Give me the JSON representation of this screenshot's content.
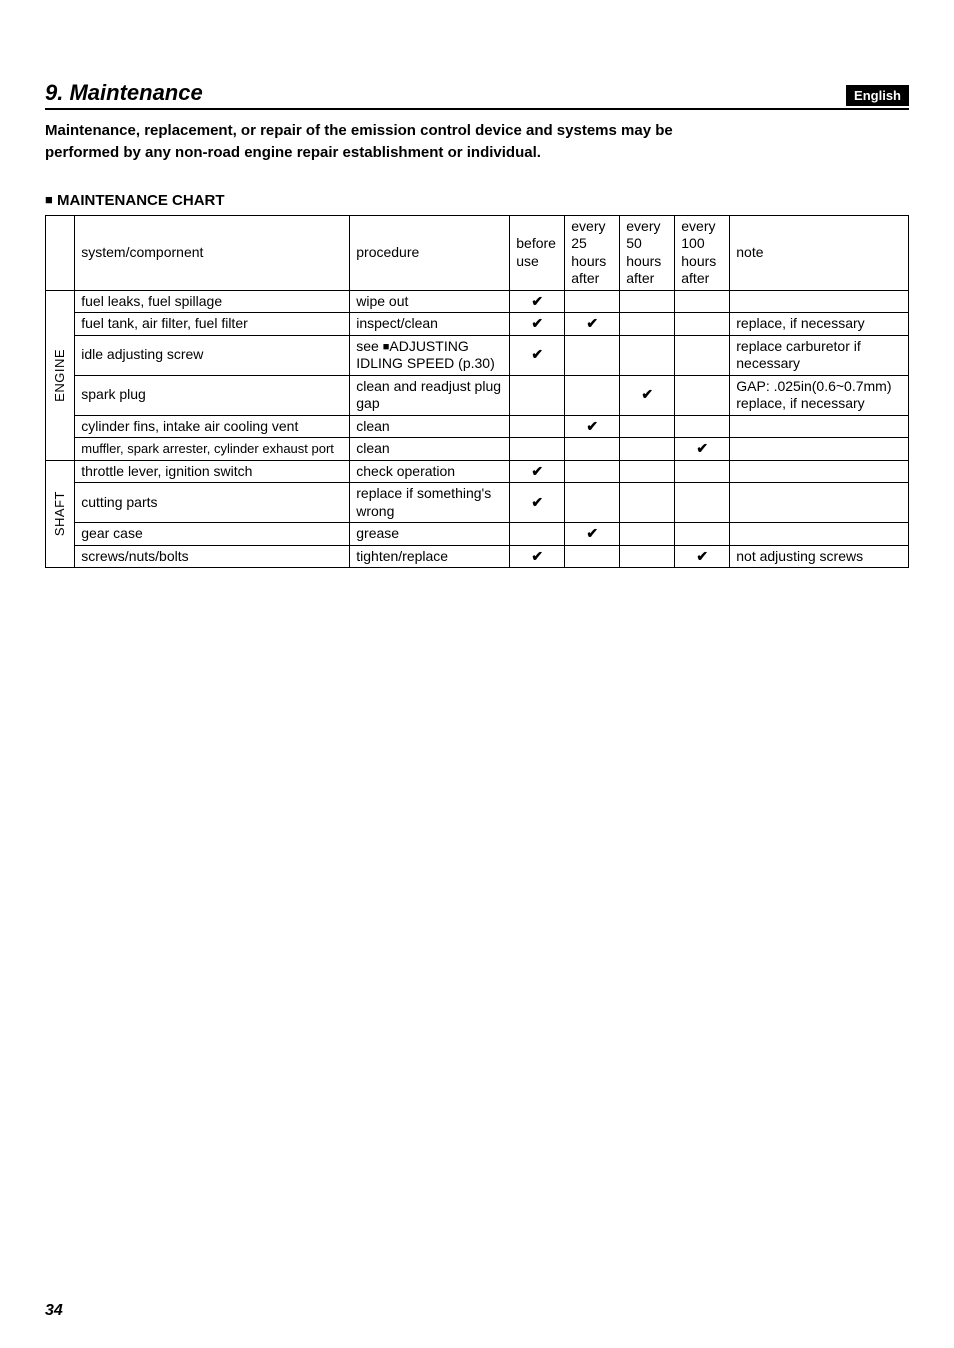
{
  "header": {
    "section_title": "9. Maintenance",
    "language": "English"
  },
  "intro_text": "Maintenance, replacement, or repair of the emission control device and systems may be performed by any non-road engine repair establishment or individual.",
  "chart_heading": "MAINTENANCE CHART",
  "columns": {
    "system": "system/compornent",
    "procedure": "procedure",
    "before": "before use",
    "h25": "every 25 hours after",
    "h50": "every 50 hours after",
    "h100": "every 100 hours after",
    "note": "note"
  },
  "groups": {
    "engine": "ENGINE",
    "shaft": "SHAFT"
  },
  "rows": {
    "r1": {
      "sys": "fuel leaks, fuel spillage",
      "proc": "wipe out",
      "before": "✔",
      "h25": "",
      "h50": "",
      "h100": "",
      "note": ""
    },
    "r2": {
      "sys": "fuel tank, air filter, fuel filter",
      "proc": "inspect/clean",
      "before": "✔",
      "h25": "✔",
      "h50": "",
      "h100": "",
      "note": "replace, if necessary"
    },
    "r3": {
      "sys": "idle adjusting screw",
      "proc_pre": "see ",
      "proc_post": "ADJUSTING IDLING SPEED (p.30)",
      "before": "✔",
      "h25": "",
      "h50": "",
      "h100": "",
      "note": "replace carburetor if necessary"
    },
    "r4": {
      "sys": "spark plug",
      "proc": "clean and readjust plug gap",
      "before": "",
      "h25": "",
      "h50": "✔",
      "h100": "",
      "note": "GAP: .025in(0.6~0.7mm) replace, if necessary"
    },
    "r5": {
      "sys": "cylinder fins, intake air cooling vent",
      "proc": "clean",
      "before": "",
      "h25": "✔",
      "h50": "",
      "h100": "",
      "note": ""
    },
    "r6": {
      "sys": "muffler, spark arrester, cylinder exhaust port",
      "proc": "clean",
      "before": "",
      "h25": "",
      "h50": "",
      "h100": "✔",
      "note": ""
    },
    "r7": {
      "sys": "throttle lever, ignition switch",
      "proc": "check operation",
      "before": "✔",
      "h25": "",
      "h50": "",
      "h100": "",
      "note": ""
    },
    "r8": {
      "sys": "cutting parts",
      "proc": "replace if something's wrong",
      "before": "✔",
      "h25": "",
      "h50": "",
      "h100": "",
      "note": ""
    },
    "r9": {
      "sys": "gear case",
      "proc": "grease",
      "before": "",
      "h25": "✔",
      "h50": "",
      "h100": "",
      "note": ""
    },
    "r10": {
      "sys": "screws/nuts/bolts",
      "proc": "tighten/replace",
      "before": "✔",
      "h25": "",
      "h50": "",
      "h100": "✔",
      "note": "not adjusting screws"
    }
  },
  "page_number": "34"
}
